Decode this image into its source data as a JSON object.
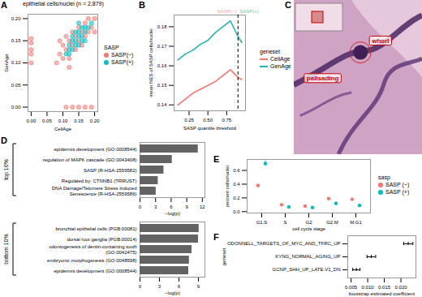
{
  "chart_data": [
    {
      "panel": "A",
      "type": "scatter",
      "title": "epithelial cells/nuclei (n = 2,879)",
      "x_label": "CellAge",
      "y_label": "GenAge",
      "legend_title": "SASP",
      "legend": "right",
      "xlim": [
        -0.01,
        0.21
      ],
      "ylim": [
        -0.01,
        0.21
      ],
      "xticks": [
        {
          "value": 0,
          "label": "0.00"
        },
        0.05,
        {
          "value": 0.1,
          "label": "0.10"
        },
        0.15,
        {
          "value": 0.2,
          "label": "0.20"
        }
      ],
      "yticks": [
        {
          "value": 0,
          "label": "0.00"
        },
        0.05,
        {
          "value": 0.1,
          "label": "0.10"
        },
        0.15,
        {
          "value": 0.2,
          "label": "0.20"
        }
      ],
      "series": [
        {
          "name": "SASP(−)",
          "color": "#f8766d",
          "x": [
            0,
            0,
            0,
            0,
            0,
            0.11,
            0.13,
            0.15,
            0.17,
            0.19,
            0.08,
            0.09,
            0.1,
            0.1,
            0.11,
            0.12,
            0.12,
            0.13,
            0.13,
            0.14,
            0.14,
            0.15,
            0.15,
            0.16,
            0.16,
            0.17,
            0.17,
            0.18,
            0.18,
            0.19,
            0.2,
            0.09,
            0.11,
            0.2,
            0.12
          ],
          "y": [
            0.1,
            0.12,
            0.13,
            0.145,
            0.155,
            0,
            0,
            0,
            0,
            0,
            0.1,
            0.12,
            0.11,
            0.14,
            0.13,
            0.15,
            0.11,
            0.14,
            0.17,
            0.13,
            0.16,
            0.15,
            0.18,
            0.14,
            0.17,
            0.16,
            0.19,
            0.17,
            0.2,
            0.18,
            0.2,
            0.15,
            0.16,
            0.17,
            0.09
          ]
        },
        {
          "name": "SASP(+)",
          "color": "#00bfc4",
          "x": [
            0.11,
            0.12,
            0.12,
            0.13,
            0.13,
            0.14,
            0.14,
            0.14,
            0.15,
            0.15,
            0.15,
            0.16,
            0.16,
            0.16,
            0.17,
            0.17,
            0.18,
            0.13,
            0.15,
            0.17,
            0.19,
            0.12
          ],
          "y": [
            0.12,
            0.13,
            0.14,
            0.13,
            0.15,
            0.14,
            0.15,
            0.17,
            0.14,
            0.16,
            0.17,
            0.15,
            0.16,
            0.18,
            0.17,
            0.18,
            0.18,
            0.16,
            0.19,
            0.15,
            0.19,
            0.12
          ]
        }
      ]
    },
    {
      "panel": "B",
      "type": "line",
      "x_label": "SASP quantile threshold",
      "y_label": "mean NES of SASP cells/nuclei",
      "legend_title": "geneset",
      "legend": "right",
      "xlim": [
        0.05,
        1.0
      ],
      "ylim": [
        0.137,
        0.186
      ],
      "xticks": [
        0.25,
        {
          "value": 0.5,
          "label": "0.50"
        },
        0.75
      ],
      "yticks": [
        0.14,
        0.15,
        0.16,
        0.17,
        0.18
      ],
      "x": [
        0.1,
        0.2,
        0.3,
        0.4,
        0.5,
        0.6,
        0.7,
        0.8,
        0.9,
        0.95
      ],
      "series": [
        {
          "name": "CellAge",
          "color": "#f8766d",
          "values": [
            0.14,
            0.143,
            0.146,
            0.148,
            0.15,
            0.152,
            0.155,
            0.158,
            0.154,
            0.153
          ]
        },
        {
          "name": "GenAge",
          "color": "#1fb5b0",
          "values": [
            0.163,
            0.166,
            0.168,
            0.171,
            0.173,
            0.177,
            0.18,
            0.183,
            0.175,
            0.172
          ]
        }
      ],
      "vline": {
        "value": 0.9,
        "line_style": "dashed"
      },
      "annotations": [
        {
          "text": "SASP(−)",
          "color": "#f4a3a8"
        },
        {
          "text": "SASP(+)",
          "color": "#7fc97f"
        }
      ]
    },
    {
      "panel": "C",
      "type": "image",
      "annotations": [
        "whorl",
        "palisading"
      ]
    },
    {
      "panel": "D",
      "type": "bar",
      "orientation": "horizontal",
      "color": "#636363",
      "x_label": "−log(p)",
      "groups": [
        {
          "name": "top 10%",
          "categories": [
            "epidermis development (GO:0008544)",
            "regulation of MAPK cascade (GO:0043408)",
            "SASP (R-HSA-2559582)",
            "Regulated by: CTNNB1 (TRRUST)",
            "DNA Damage/Telomere Stress Induced Senescence (R-HSA-2559586)"
          ],
          "values": [
            11.2,
            6.2,
            4.6,
            3.5,
            3.1
          ],
          "xlim": [
            0,
            12.5
          ],
          "xticks": [
            0,
            3,
            6,
            9,
            12
          ]
        },
        {
          "name": "bottom 10%",
          "categories": [
            "bronchial epithelial cells (PGB:00081)",
            "dorsal root ganglia (PGB:00014)",
            "odontogenesis of dentin-containing tooth (GO:0042475)",
            "embryonic morphogenesis (GO:0048598)",
            "epidermis development (GO:0008544)"
          ],
          "values": [
            9.1,
            9.0,
            8.0,
            7.6,
            7.5
          ],
          "xlim": [
            0,
            10
          ],
          "xticks": [
            0,
            3,
            6,
            9
          ]
        }
      ]
    },
    {
      "panel": "E",
      "type": "pointrange",
      "x_label": "cell cycle stage",
      "y_label": "percent cells/nuclei",
      "legend_title": "sasp",
      "legend": "right",
      "categories": [
        "G1.S",
        "S",
        "G2",
        "G2.M",
        "M.G1"
      ],
      "ylim": [
        -0.02,
        0.76
      ],
      "yticks": [
        {
          "value": 0,
          "label": "0.0"
        },
        0.2,
        0.4,
        0.6
      ],
      "series": [
        {
          "name": "SASP (−)",
          "color": "#f8766d",
          "values": [
            0.38,
            0.1,
            0.08,
            0.19,
            0.18
          ],
          "error": [
            0.02,
            0.01,
            0.01,
            0.015,
            0.015
          ]
        },
        {
          "name": "SASP (+)",
          "color": "#00bfc4",
          "values": [
            0.7,
            0.07,
            0.06,
            0.12,
            0.09
          ],
          "error": [
            0.035,
            0.015,
            0.015,
            0.02,
            0.02
          ]
        }
      ]
    },
    {
      "panel": "F",
      "type": "interval",
      "orientation": "horizontal",
      "x_label": "bootstrap estimated coefficient",
      "y_label": "geneset",
      "categories": [
        "ODONNELL_TARGETS_OF_MYC_AND_TFRC_UP",
        "KYNG_NORMAL_AGING_UP",
        "GCNP_SHH_UP_LATE.V1_DN"
      ],
      "values": [
        0.0222,
        0.0111,
        0.0066
      ],
      "lower": [
        0.0208,
        0.0098,
        0.0055
      ],
      "upper": [
        0.0236,
        0.0124,
        0.0077
      ],
      "xlim": [
        0.004,
        0.0245
      ],
      "xticks": [
        0.005,
        {
          "value": 0.01,
          "label": "0.010"
        },
        0.015,
        {
          "value": 0.02,
          "label": "0.020"
        }
      ]
    }
  ]
}
